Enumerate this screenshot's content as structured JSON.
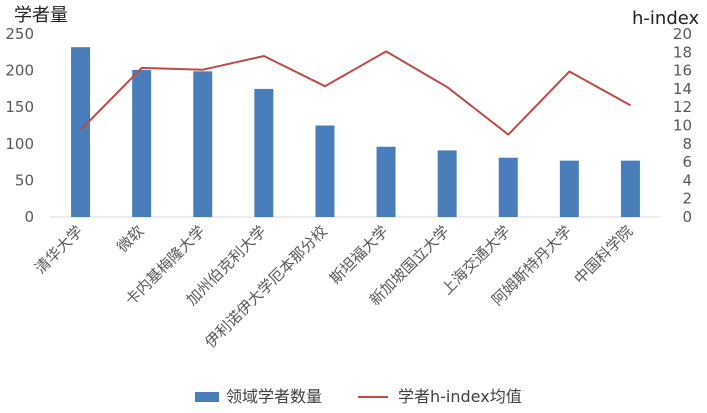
{
  "chart_data": {
    "type": "bar",
    "title": "",
    "categories": [
      "清华大学",
      "微软",
      "卡内基梅隆大学",
      "加州伯克利大学",
      "伊利诺伊大学厄本那分校",
      "斯坦福大学",
      "新加坡国立大学",
      "上海交通大学",
      "阿姆斯特丹大学",
      "中国科学院"
    ],
    "series": [
      {
        "name": "领域学者数量",
        "kind": "bar",
        "axis": "left",
        "color": "#4a7ebb",
        "values": [
          232,
          201,
          199,
          175,
          125,
          96,
          91,
          81,
          77,
          77
        ]
      },
      {
        "name": "学者h-index均值",
        "kind": "line",
        "axis": "right",
        "color": "#be4b48",
        "values": [
          9.5,
          16.3,
          16.1,
          17.6,
          14.3,
          18.1,
          14.2,
          9.0,
          15.9,
          12.2
        ]
      }
    ],
    "ylabel": "学者量",
    "y2label": "h-index",
    "ylim": [
      0,
      250
    ],
    "yticks": [
      0,
      50,
      100,
      150,
      200,
      250
    ],
    "y2lim": [
      0,
      20
    ],
    "y2ticks": [
      0,
      2,
      4,
      6,
      8,
      10,
      12,
      14,
      16,
      18,
      20
    ],
    "grid": false,
    "legend": "bottom"
  }
}
